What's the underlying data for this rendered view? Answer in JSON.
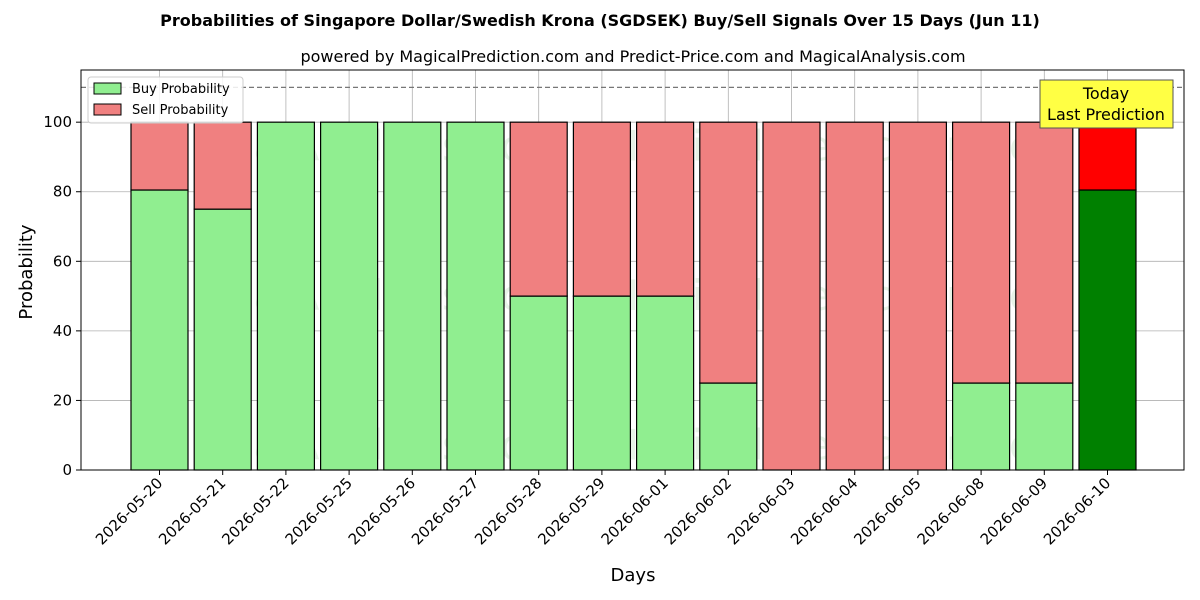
{
  "chart_data": {
    "type": "bar",
    "stacked": true,
    "title": "Probabilities of Singapore Dollar/Swedish Krona (SGDSEK) Buy/Sell Signals Over 15 Days (Jun 11)",
    "subtitle": "powered by MagicalPrediction.com and Predict-Price.com and MagicalAnalysis.com",
    "xlabel": "Days",
    "ylabel": "Probability",
    "ylim": [
      0,
      115
    ],
    "yticks": [
      0,
      20,
      40,
      60,
      80,
      100
    ],
    "grid": true,
    "legend_position": "top-left",
    "reference_line": 110,
    "categories": [
      "2026-05-20",
      "2026-05-21",
      "2026-05-22",
      "2026-05-25",
      "2026-05-26",
      "2026-05-27",
      "2026-05-28",
      "2026-05-29",
      "2026-06-01",
      "2026-06-02",
      "2026-06-03",
      "2026-06-04",
      "2026-06-05",
      "2026-06-08",
      "2026-06-09",
      "2026-06-10"
    ],
    "series": [
      {
        "name": "Buy Probability",
        "color": "#90ee90",
        "highlight_color": "#008000",
        "values": [
          80.5,
          75,
          100,
          100,
          100,
          100,
          50,
          50,
          50,
          25,
          0,
          0,
          0,
          25,
          25,
          80.5
        ]
      },
      {
        "name": "Sell Probability",
        "color": "#f08080",
        "highlight_color": "#ff0000",
        "values": [
          19.5,
          25,
          0,
          0,
          0,
          0,
          50,
          50,
          50,
          75,
          100,
          100,
          100,
          75,
          75,
          19.5
        ]
      }
    ],
    "highlight_index": 15,
    "annotation": {
      "line1": "Today",
      "line2": "Last Prediction",
      "background": "#ffff44"
    },
    "watermarks": [
      "MagicalAnalysis.com",
      "MagicalPrediction.com"
    ]
  }
}
